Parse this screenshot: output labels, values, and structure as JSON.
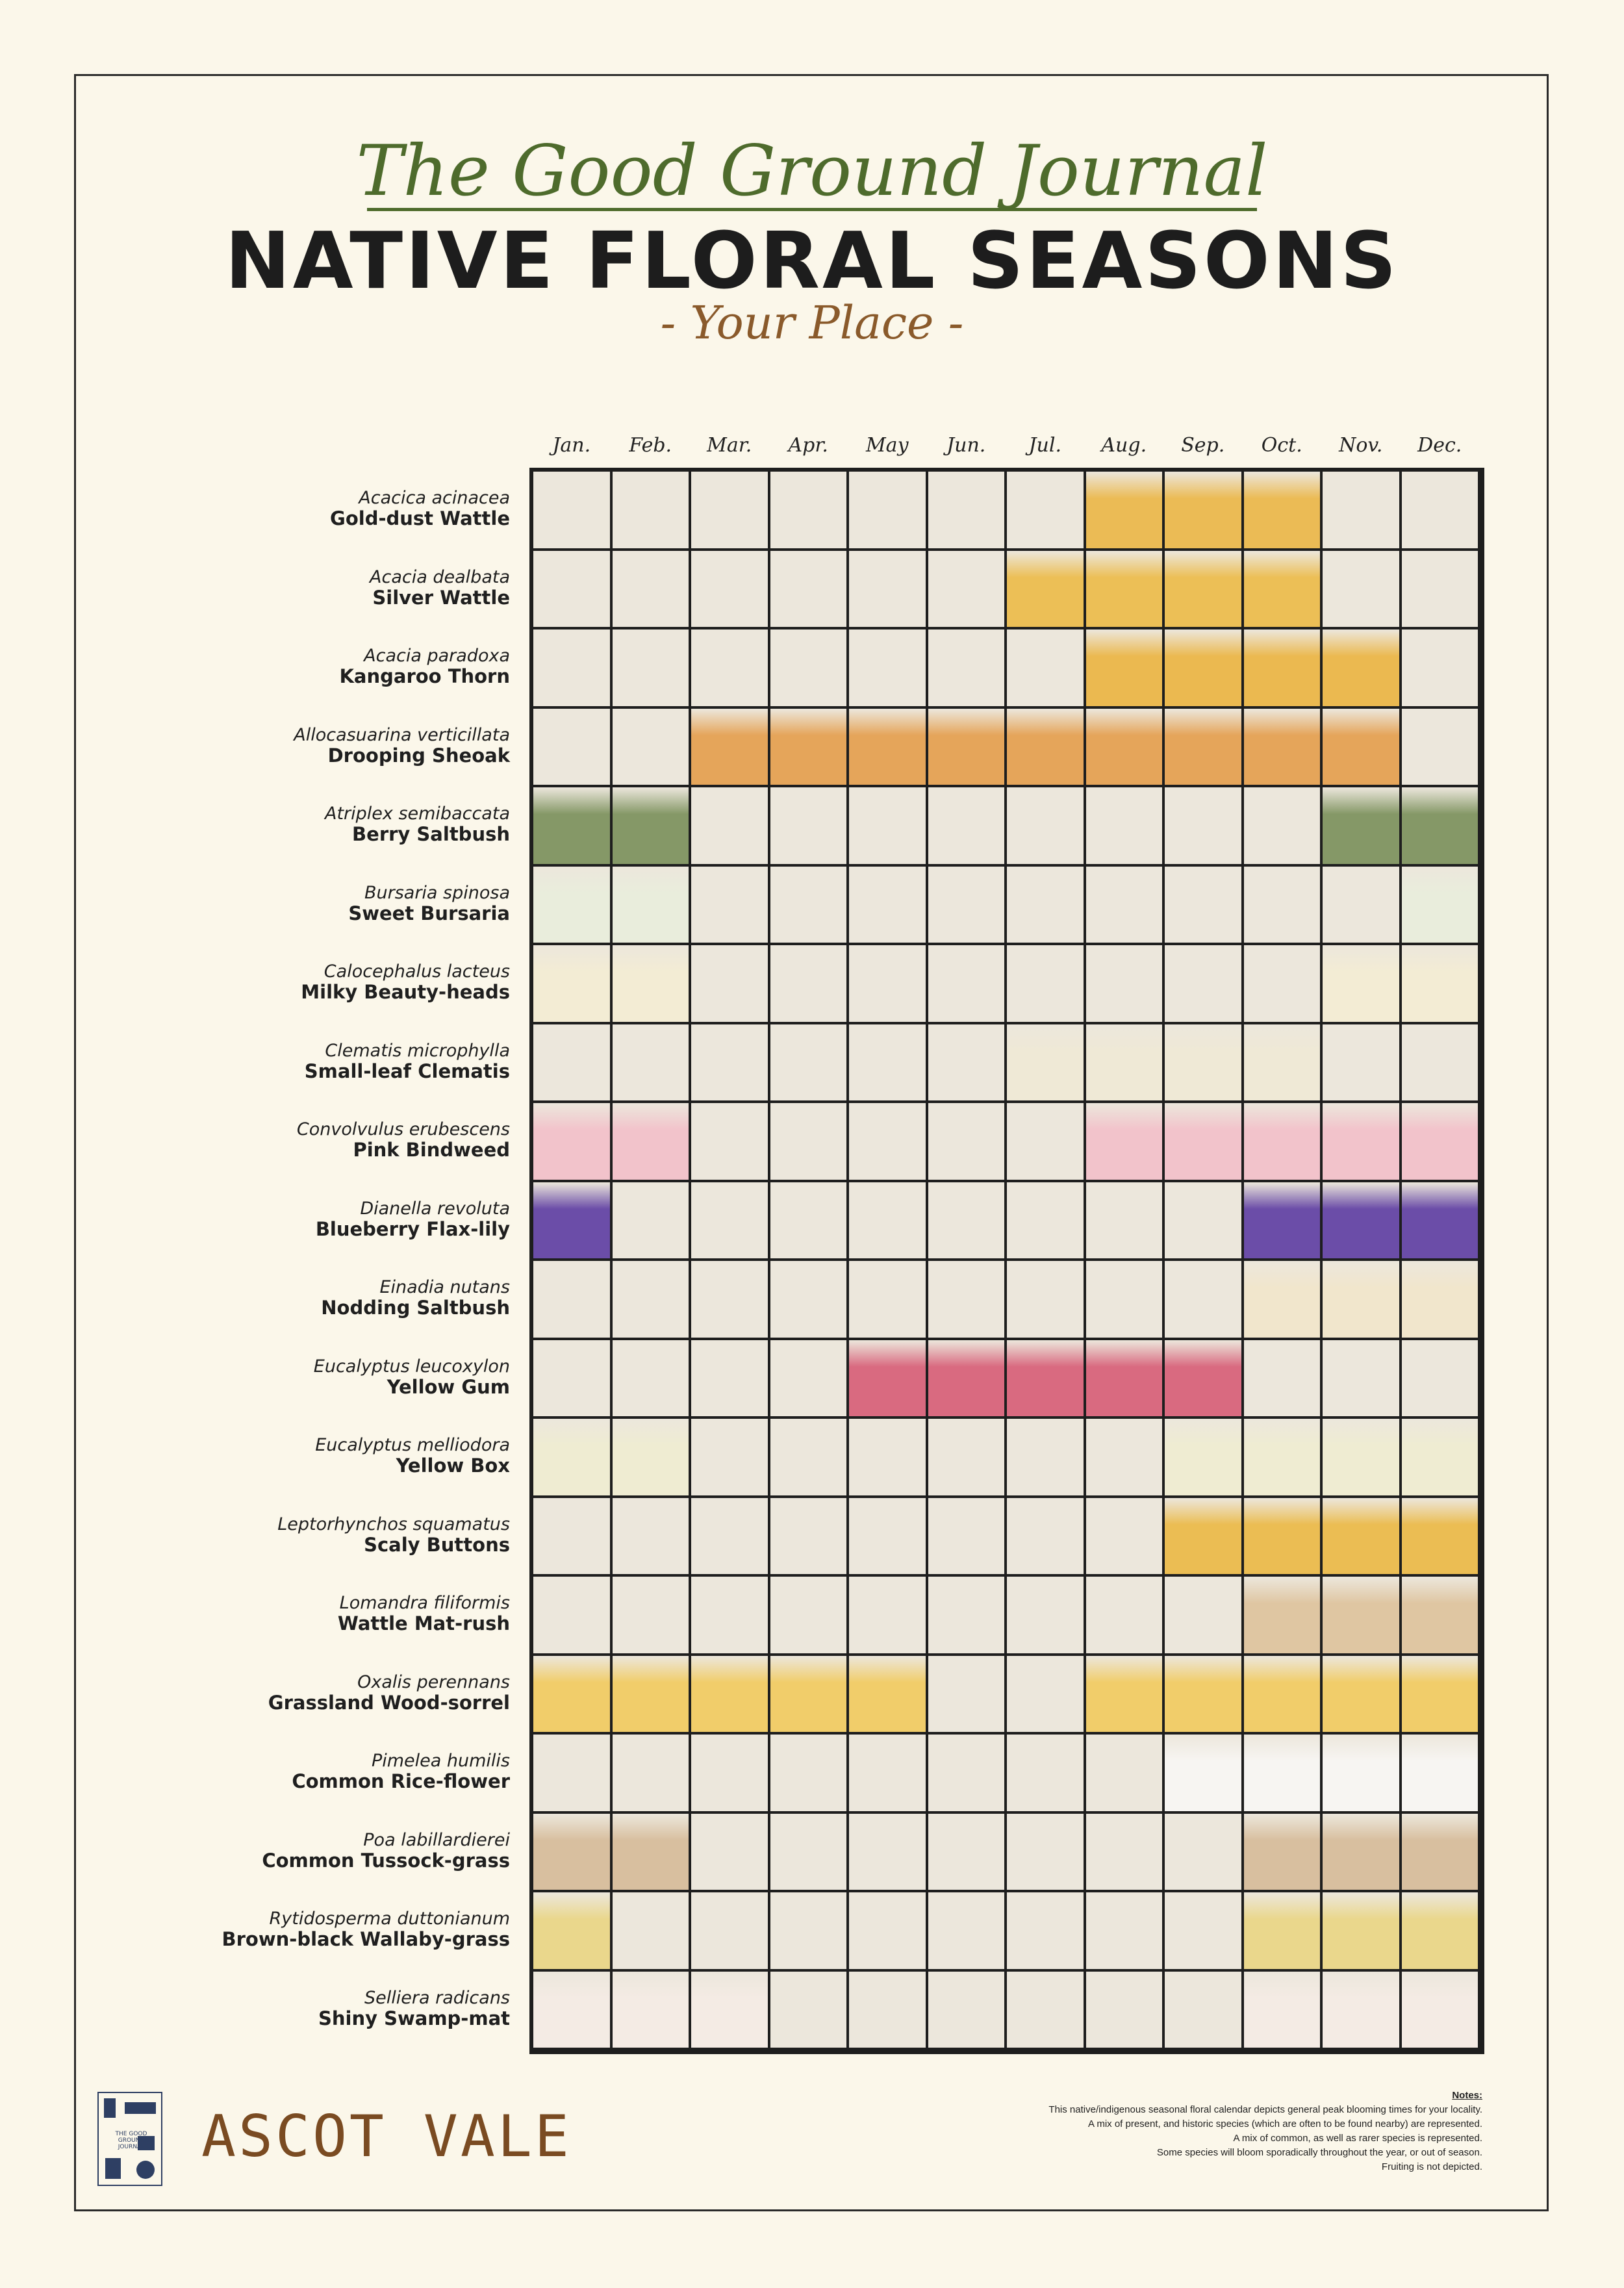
{
  "header": {
    "script_title": "The Good Ground Journal",
    "main_title": "NATIVE FLORAL SEASONS",
    "subtitle": "- Your Place -"
  },
  "months": [
    "Jan.",
    "Feb.",
    "Mar.",
    "Apr.",
    "May",
    "Jun.",
    "Jul.",
    "Aug.",
    "Sep.",
    "Oct.",
    "Nov.",
    "Dec."
  ],
  "species": [
    {
      "scientific": "Acacica acinacea",
      "common": "Gold-dust Wattle",
      "color": "#ebbb55",
      "months": [
        8,
        9,
        10
      ]
    },
    {
      "scientific": "Acacia dealbata",
      "common": "Silver Wattle",
      "color": "#ecbf56",
      "months": [
        7,
        8,
        9,
        10
      ]
    },
    {
      "scientific": "Acacia paradoxa",
      "common": "Kangaroo Thorn",
      "color": "#ebb950",
      "months": [
        8,
        9,
        10,
        11
      ]
    },
    {
      "scientific": "Allocasuarina verticillata",
      "common": "Drooping Sheoak",
      "color": "#e5a55a",
      "months": [
        3,
        4,
        5,
        6,
        7,
        8,
        9,
        10,
        11
      ]
    },
    {
      "scientific": "Atriplex semibaccata",
      "common": "Berry Saltbush",
      "color": "#859867",
      "months": [
        1,
        2,
        11,
        12
      ]
    },
    {
      "scientific": "Bursaria spinosa",
      "common": "Sweet Bursaria",
      "color": "#e9eddc",
      "months": [
        1,
        2,
        12
      ]
    },
    {
      "scientific": "Calocephalus lacteus",
      "common": "Milky Beauty-heads",
      "color": "#f3ecd4",
      "months": [
        1,
        2,
        11,
        12
      ]
    },
    {
      "scientific": "Clematis microphylla",
      "common": "Small-leaf Clematis",
      "color": "#efe9d6",
      "months": [
        7,
        8,
        9,
        10
      ]
    },
    {
      "scientific": "Convolvulus erubescens",
      "common": "Pink Bindweed",
      "color": "#f2c3cb",
      "months": [
        1,
        2,
        8,
        9,
        10,
        11,
        12
      ]
    },
    {
      "scientific": "Dianella revoluta",
      "common": "Blueberry Flax-lily",
      "color": "#6b4da8",
      "months": [
        1,
        10,
        11,
        12
      ]
    },
    {
      "scientific": "Einadia nutans",
      "common": "Nodding Saltbush",
      "color": "#f1e6cc",
      "months": [
        10,
        11,
        12
      ]
    },
    {
      "scientific": "Eucalyptus leucoxylon",
      "common": "Yellow Gum",
      "color": "#d96a80",
      "months": [
        5,
        6,
        7,
        8,
        9
      ]
    },
    {
      "scientific": "Eucalyptus melliodora",
      "common": "Yellow Box",
      "color": "#efecd2",
      "months": [
        1,
        2,
        9,
        10,
        11,
        12
      ]
    },
    {
      "scientific": "Leptorhynchos squamatus",
      "common": "Scaly Buttons",
      "color": "#ebbd53",
      "months": [
        9,
        10,
        11,
        12
      ]
    },
    {
      "scientific": "Lomandra filiformis",
      "common": "Wattle Mat-rush",
      "color": "#dfc6a2",
      "months": [
        10,
        11,
        12
      ]
    },
    {
      "scientific": "Oxalis perennans",
      "common": "Grassland Wood-sorrel",
      "color": "#f1cd6a",
      "months": [
        1,
        2,
        3,
        4,
        5,
        8,
        9,
        10,
        11,
        12
      ]
    },
    {
      "scientific": "Pimelea humilis",
      "common": "Common Rice-flower",
      "color": "#f7f5f2",
      "months": [
        9,
        10,
        11,
        12
      ]
    },
    {
      "scientific": "Poa labillardierei",
      "common": "Common Tussock-grass",
      "color": "#d8bf9f",
      "months": [
        1,
        2,
        10,
        11,
        12
      ]
    },
    {
      "scientific": "Rytidosperma duttonianum",
      "common": "Brown-black Wallaby-grass",
      "color": "#ead78c",
      "months": [
        1,
        10,
        11,
        12
      ]
    },
    {
      "scientific": "Selliera radicans",
      "common": "Shiny Swamp-mat",
      "color": "#f4ebe4",
      "months": [
        1,
        2,
        3,
        10,
        11,
        12
      ]
    }
  ],
  "footer": {
    "logo_text": "THE GOOD GROUND JOURNAL",
    "place": "ASCOT VALE",
    "notes_title": "Notes:",
    "notes": [
      "This native/indigenous seasonal floral calendar depicts general peak blooming times for your locality.",
      "A mix of present, and historic species (which are often to be found nearby) are represented.",
      "A mix of common, as well as rarer species is represented.",
      "Some species will bloom sporadically throughout the year, or out of season.",
      "Fruiting is not depicted."
    ]
  }
}
